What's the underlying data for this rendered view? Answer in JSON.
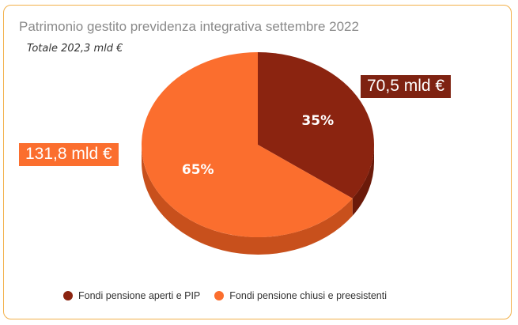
{
  "chart_data": {
    "type": "pie",
    "title": "Patrimonio gestito previdenza integrativa settembre 2022",
    "subtitle": "Totale 202,3 mld €",
    "categories": [
      "Fondi pensione aperti e PIP",
      "Fondi pensione chiusi e preesistenti"
    ],
    "values": [
      70.5,
      131.8
    ],
    "percent_labels": [
      "35%",
      "65%"
    ],
    "value_labels": [
      "70,5 mld €",
      "131,8 mld €"
    ],
    "colors": [
      "#8b2410",
      "#fb6e2e"
    ],
    "side_colors": [
      "#6b1a0a",
      "#c8501c"
    ],
    "legend_position": "bottom"
  }
}
